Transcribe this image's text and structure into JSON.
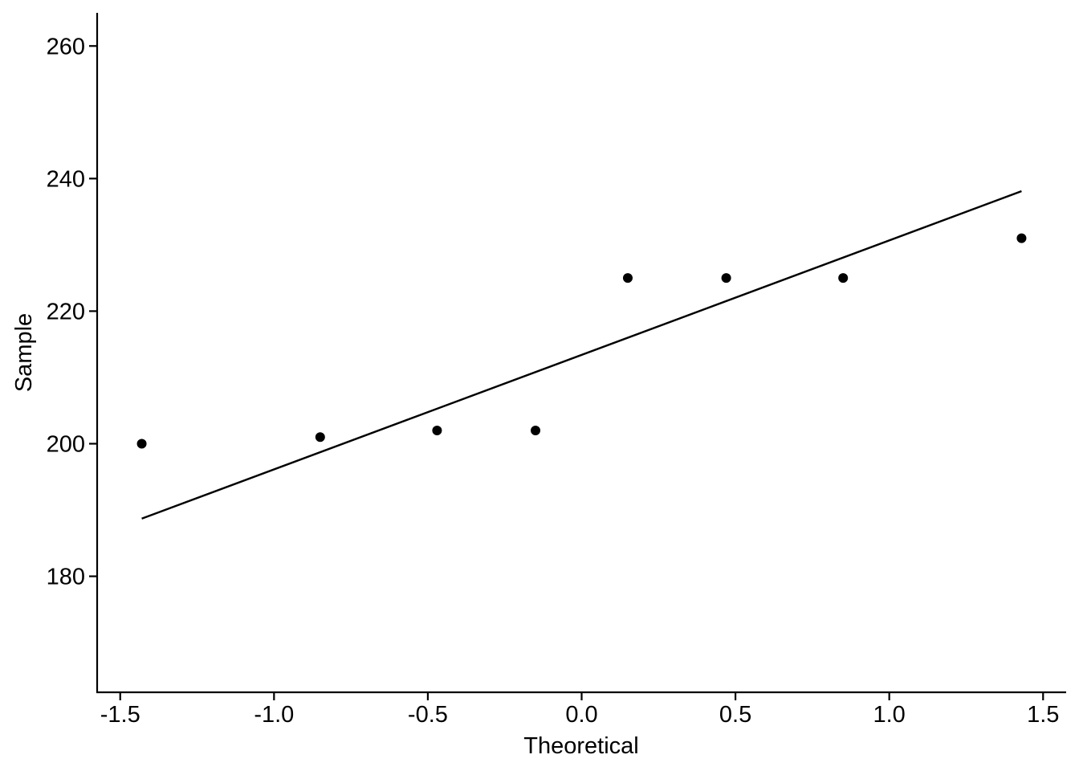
{
  "chart_data": {
    "type": "scatter",
    "title": "",
    "xlabel": "Theoretical",
    "ylabel": "Sample",
    "xlim": [
      -1.575,
      1.575
    ],
    "ylim": [
      162.5,
      265
    ],
    "x_ticks": [
      -1.5,
      -1.0,
      -0.5,
      0.0,
      0.5,
      1.0,
      1.5
    ],
    "x_tick_labels": [
      "-1.5",
      "-1.0",
      "-0.5",
      "0.0",
      "0.5",
      "1.0",
      "1.5"
    ],
    "y_ticks": [
      180,
      200,
      220,
      240,
      260
    ],
    "y_tick_labels": [
      "180",
      "200",
      "220",
      "240",
      "260"
    ],
    "grid": false,
    "series": [
      {
        "points": [
          {
            "x": -1.43,
            "y": 200
          },
          {
            "x": -0.85,
            "y": 201
          },
          {
            "x": -0.47,
            "y": 202
          },
          {
            "x": -0.15,
            "y": 202
          },
          {
            "x": 0.15,
            "y": 225
          },
          {
            "x": 0.47,
            "y": 225
          },
          {
            "x": 0.85,
            "y": 225
          },
          {
            "x": 1.43,
            "y": 231
          }
        ],
        "color": "#000000"
      }
    ],
    "reference_line": {
      "from": {
        "x": -1.43,
        "y": 188.7
      },
      "to": {
        "x": 1.43,
        "y": 238.1
      },
      "color": "#000000"
    }
  }
}
